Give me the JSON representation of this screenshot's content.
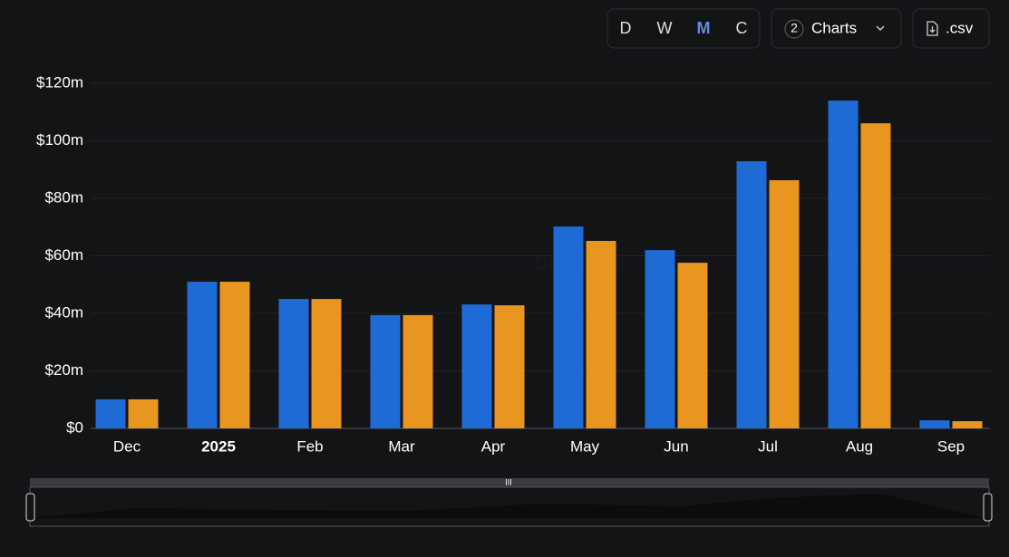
{
  "toolbar": {
    "intervals": [
      "D",
      "W",
      "M",
      "C"
    ],
    "active_interval": "M",
    "charts_count": "2",
    "charts_label": "Charts",
    "csv_label": ".csv"
  },
  "watermark": "DefiLlama",
  "chart_data": {
    "type": "bar",
    "categories": [
      "Dec",
      "2025",
      "Feb",
      "Mar",
      "Apr",
      "May",
      "Jun",
      "Jul",
      "Aug",
      "Sep"
    ],
    "series": [
      {
        "color": "#1f6bd6",
        "values": [
          10.1,
          51,
          45,
          39.4,
          43.1,
          70.2,
          62,
          92.9,
          114,
          2.8
        ]
      },
      {
        "color": "#e8961f",
        "values": [
          10.1,
          51,
          45,
          39.4,
          42.8,
          65.2,
          57.6,
          86.3,
          106.1,
          2.5
        ]
      }
    ],
    "ylim": [
      0,
      120
    ],
    "yticks": [
      {
        "value": 0,
        "label": "$0"
      },
      {
        "value": 20,
        "label": "$20m"
      },
      {
        "value": 40,
        "label": "$40m"
      },
      {
        "value": 60,
        "label": "$60m"
      },
      {
        "value": 80,
        "label": "$80m"
      },
      {
        "value": 100,
        "label": "$100m"
      },
      {
        "value": 120,
        "label": "$120m"
      }
    ],
    "grid": true
  }
}
